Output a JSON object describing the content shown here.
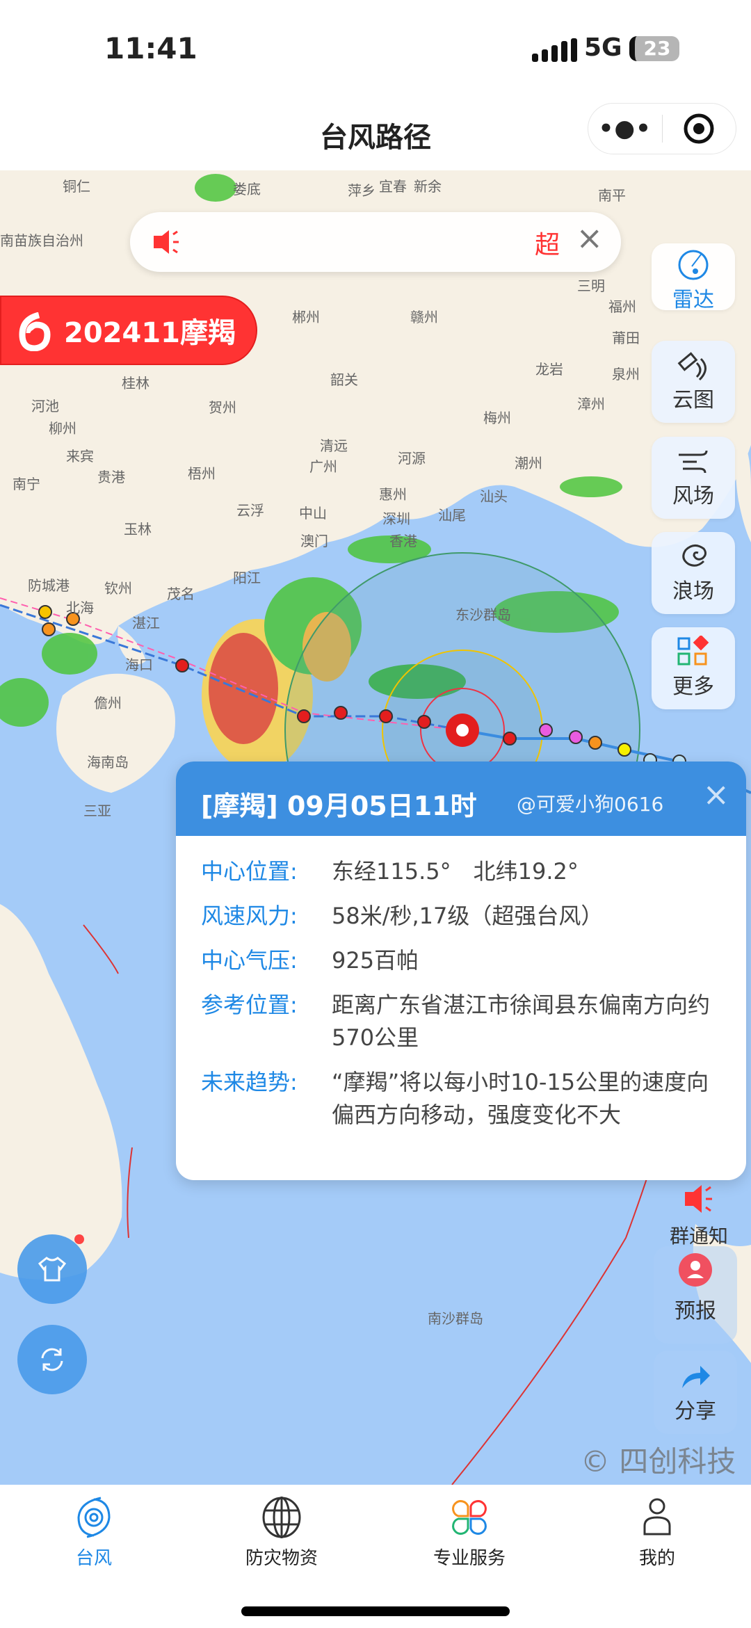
{
  "status_bar": {
    "time": "11:41",
    "network": "5G",
    "battery": "23"
  },
  "header": {
    "title": "台风路径",
    "more_icon": "more-dots-icon",
    "target_icon": "target-icon"
  },
  "banner": {
    "icon": "speaker-icon",
    "text": "超"
  },
  "typhoon": {
    "label": "202411摩羯",
    "color": "#ff3333"
  },
  "layers": [
    {
      "label": "雷达",
      "active": true
    },
    {
      "label": "云图"
    },
    {
      "label": "风场"
    },
    {
      "label": "浪场"
    },
    {
      "label": "更多"
    }
  ],
  "popup": {
    "title": "[摩羯] 09月05日11时",
    "watermark": "@可爱小狗0616",
    "rows": [
      {
        "key": "中心位置:",
        "value": "东经115.5°　北纬19.2°"
      },
      {
        "key": "风速风力:",
        "value": "58米/秒,17级（超强台风）"
      },
      {
        "key": "中心气压:",
        "value": "925百帕"
      },
      {
        "key": "参考位置:",
        "value": "距离广东省湛江市徐闻县东偏南方向约570公里"
      },
      {
        "key": "未来趋势:",
        "value": "“摩羯”将以每小时10-15公里的速度向偏西方向移动，强度变化不大"
      }
    ]
  },
  "side_actions": {
    "notify": "群通知",
    "forecast": "预报",
    "share": "分享"
  },
  "map": {
    "labels": [
      "铜仁",
      "娄底",
      "萍乡",
      "宜春",
      "新余",
      "南平",
      "南苗族自治州",
      "三明",
      "福州",
      "郴州",
      "赣州",
      "莆田",
      "龙岩",
      "韶关",
      "桂林",
      "河池",
      "柳州",
      "贺州",
      "漳州",
      "泉州",
      "梅州",
      "来宾",
      "清远",
      "河源",
      "广州",
      "潮州",
      "南宁",
      "贵港",
      "梧州",
      "惠州",
      "汕尾",
      "汕头",
      "玉林",
      "云浮",
      "中山",
      "深圳",
      "澳门",
      "香港",
      "防城港",
      "北海",
      "钦州",
      "湛江",
      "茂名",
      "阳江",
      "东沙群岛",
      "海口",
      "儋州",
      "海南岛",
      "三亚",
      "南沙群岛"
    ],
    "watermark": "© 四创科技"
  },
  "nav": [
    {
      "label": "台风",
      "active": true
    },
    {
      "label": "防灾物资"
    },
    {
      "label": "专业服务"
    },
    {
      "label": "我的"
    }
  ]
}
